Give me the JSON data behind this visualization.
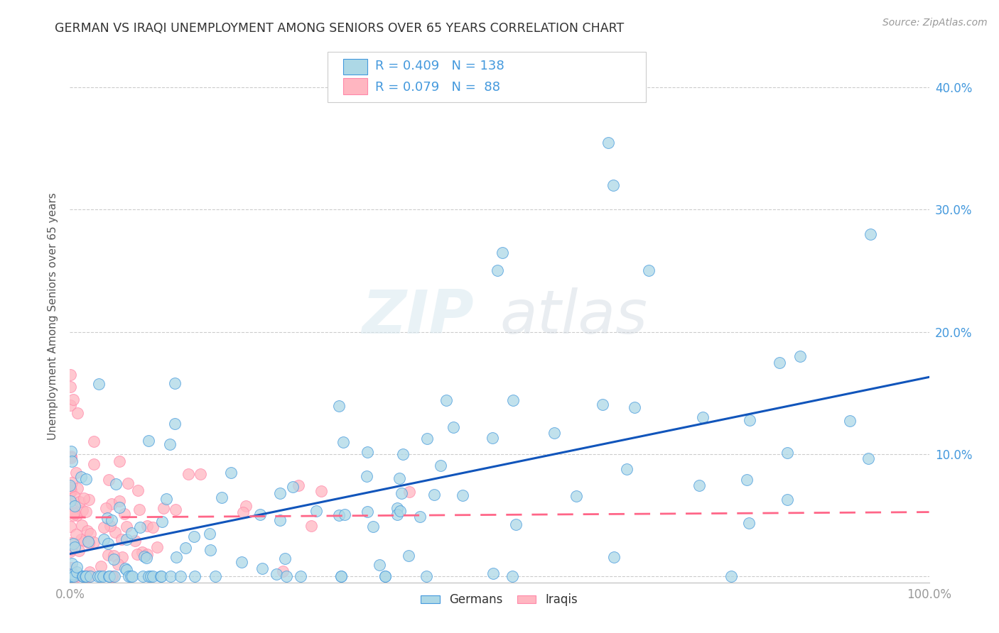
{
  "title": "GERMAN VS IRAQI UNEMPLOYMENT AMONG SENIORS OVER 65 YEARS CORRELATION CHART",
  "source": "Source: ZipAtlas.com",
  "ylabel": "Unemployment Among Seniors over 65 years",
  "xlim": [
    0.0,
    1.0
  ],
  "ylim": [
    -0.01,
    0.43
  ],
  "german_color": "#ADD8E6",
  "german_edge_color": "#4499DD",
  "iraqi_color": "#FFB6C1",
  "iraqi_edge_color": "#FF88AA",
  "german_line_color": "#1155BB",
  "iraqi_line_color": "#FF6688",
  "german_R": 0.409,
  "german_N": 138,
  "iraqi_R": 0.079,
  "iraqi_N": 88,
  "watermark_zip": "ZIP",
  "watermark_atlas": "atlas",
  "background_color": "#FFFFFF",
  "grid_color": "#CCCCCC",
  "title_color": "#333333",
  "axis_label_color": "#555555",
  "tick_label_color": "#999999",
  "right_tick_color": "#4499DD",
  "legend_text_color": "#4499DD",
  "legend_n_color": "#CC2222"
}
